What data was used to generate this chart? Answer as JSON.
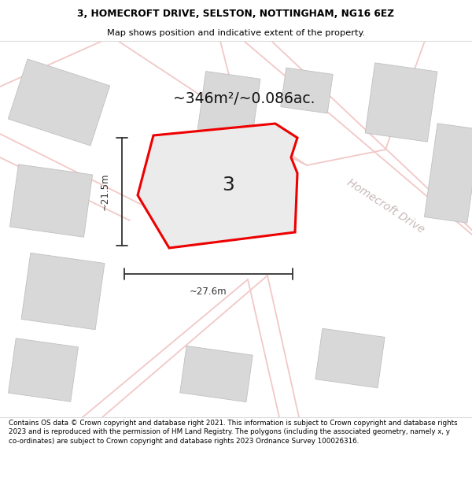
{
  "title_line1": "3, HOMECROFT DRIVE, SELSTON, NOTTINGHAM, NG16 6EZ",
  "title_line2": "Map shows position and indicative extent of the property.",
  "area_text": "~346m²/~0.086ac.",
  "label_number": "3",
  "dim_width": "~27.6m",
  "dim_height": "~21.5m",
  "street_label": "Homecroft Drive",
  "footer_text": "Contains OS data © Crown copyright and database right 2021. This information is subject to Crown copyright and database rights 2023 and is reproduced with the permission of HM Land Registry. The polygons (including the associated geometry, namely x, y co-ordinates) are subject to Crown copyright and database rights 2023 Ordnance Survey 100026316.",
  "map_bg": "#f7f7f7",
  "plot_fill": "#ebebeb",
  "plot_edge": "#ee0000",
  "road_color": "#f2c8c8",
  "building_color": "#d8d8d8",
  "building_edge": "#c0c0c0",
  "title_bg": "#ffffff",
  "footer_bg": "#ffffff",
  "dim_color": "#333333",
  "street_color": "#c8b8b8"
}
